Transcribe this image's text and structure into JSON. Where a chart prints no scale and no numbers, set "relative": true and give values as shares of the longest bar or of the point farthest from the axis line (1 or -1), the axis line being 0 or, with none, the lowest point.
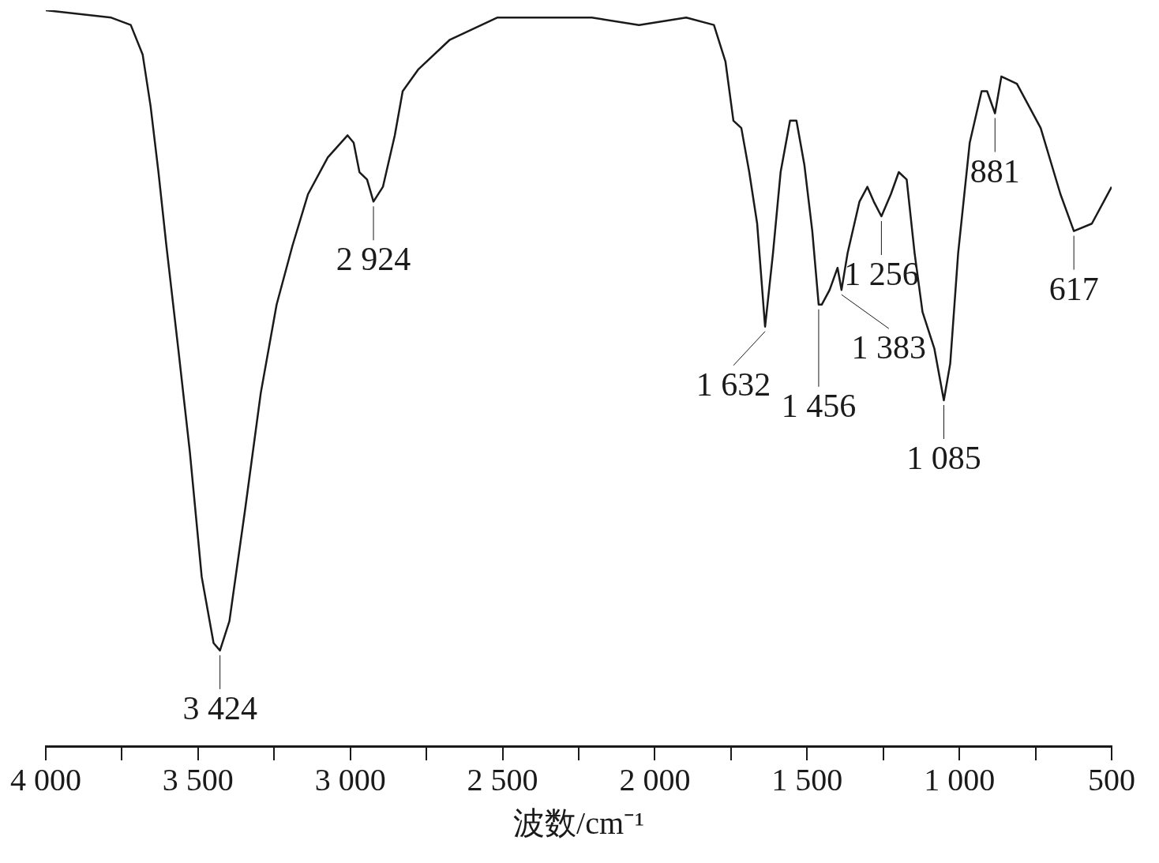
{
  "chart_data": {
    "type": "line",
    "relative": true,
    "xlabel": "波数/cm⁻¹",
    "color": "#1a1a1a",
    "grid": false,
    "legend": false,
    "marker": "none",
    "line_style": "solid",
    "xlim": [
      4000,
      500
    ],
    "xticks": [
      {
        "value": 4000,
        "label": "4 000"
      },
      {
        "value": 3750,
        "label": null
      },
      {
        "value": 3500,
        "label": "3 500"
      },
      {
        "value": 3250,
        "label": null
      },
      {
        "value": 3000,
        "label": "3 000"
      },
      {
        "value": 2750,
        "label": null
      },
      {
        "value": 2500,
        "label": "2 500"
      },
      {
        "value": 2250,
        "label": null
      },
      {
        "value": 2000,
        "label": "2 000"
      },
      {
        "value": 1750,
        "label": null
      },
      {
        "value": 1500,
        "label": "1 500"
      },
      {
        "value": 1250,
        "label": null
      },
      {
        "value": 1000,
        "label": "1 000"
      },
      {
        "value": 750,
        "label": null
      },
      {
        "value": 500,
        "label": "500"
      }
    ],
    "x": [
      4000,
      3785,
      3721,
      3682,
      3656,
      3630,
      3604,
      3565,
      3527,
      3488,
      3449,
      3428,
      3397,
      3346,
      3294,
      3242,
      3190,
      3139,
      3074,
      3009,
      2989,
      2970,
      2945,
      2924,
      2893,
      2854,
      2828,
      2776,
      2673,
      2518,
      2363,
      2207,
      2052,
      1897,
      1806,
      1768,
      1742,
      1716,
      1690,
      1664,
      1638,
      1612,
      1587,
      1556,
      1535,
      1509,
      1483,
      1462,
      1452,
      1426,
      1400,
      1387,
      1367,
      1328,
      1302,
      1281,
      1256,
      1225,
      1199,
      1173,
      1147,
      1121,
      1082,
      1051,
      1030,
      1004,
      966,
      927,
      909,
      883,
      862,
      811,
      733,
      668,
      624,
      565,
      500
    ],
    "values": [
      1.0,
      0.99,
      0.98,
      0.94,
      0.87,
      0.78,
      0.68,
      0.54,
      0.4,
      0.23,
      0.14,
      0.13,
      0.17,
      0.32,
      0.48,
      0.6,
      0.68,
      0.75,
      0.8,
      0.83,
      0.82,
      0.78,
      0.77,
      0.74,
      0.76,
      0.83,
      0.89,
      0.92,
      0.96,
      0.99,
      0.99,
      0.99,
      0.98,
      0.99,
      0.98,
      0.93,
      0.85,
      0.84,
      0.78,
      0.71,
      0.57,
      0.67,
      0.78,
      0.85,
      0.85,
      0.79,
      0.7,
      0.6,
      0.6,
      0.62,
      0.65,
      0.62,
      0.67,
      0.74,
      0.76,
      0.74,
      0.72,
      0.75,
      0.78,
      0.77,
      0.67,
      0.59,
      0.54,
      0.47,
      0.52,
      0.67,
      0.82,
      0.89,
      0.89,
      0.86,
      0.91,
      0.9,
      0.84,
      0.75,
      0.7,
      0.71,
      0.76
    ],
    "annotations": [
      {
        "text": "3 424",
        "x": 3428,
        "y": 0.13
      },
      {
        "text": "2 924",
        "x": 2924,
        "y": 0.74
      },
      {
        "text": "1 632",
        "x": 1638,
        "y": 0.57
      },
      {
        "text": "1 456",
        "x": 1462,
        "y": 0.6
      },
      {
        "text": "1 383",
        "x": 1387,
        "y": 0.62
      },
      {
        "text": "1 256",
        "x": 1256,
        "y": 0.72
      },
      {
        "text": "1 085",
        "x": 1051,
        "y": 0.47
      },
      {
        "text": "881",
        "x": 883,
        "y": 0.86
      },
      {
        "text": "617",
        "x": 624,
        "y": 0.7
      }
    ]
  }
}
